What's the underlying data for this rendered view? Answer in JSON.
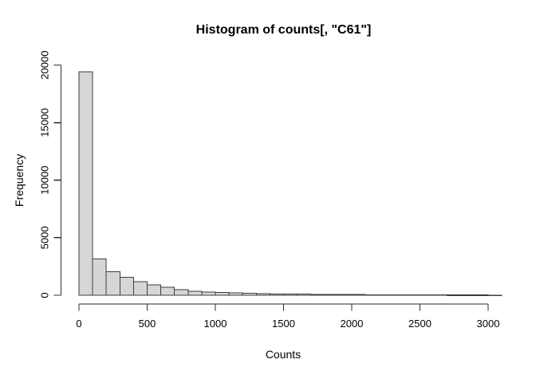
{
  "figure": {
    "kind": "R base-graphics histogram plot",
    "background": "#ffffff"
  },
  "chart_data": {
    "type": "bar",
    "subtype": "histogram",
    "title": "Histogram of counts[, \"C61\"]",
    "xlabel": "Counts",
    "ylabel": "Frequency",
    "bin_start": 0,
    "bin_width": 100,
    "bin_edges": [
      0,
      100,
      200,
      300,
      400,
      500,
      600,
      700,
      800,
      900,
      1000,
      1100,
      1200,
      1300,
      1400,
      1500,
      1600,
      1700,
      1800,
      1900,
      2000,
      2100,
      2200,
      2300,
      2400,
      2500,
      2600,
      2700,
      2800,
      2900,
      3000,
      3100
    ],
    "values": [
      19400,
      3150,
      2060,
      1550,
      1180,
      890,
      700,
      500,
      360,
      290,
      235,
      195,
      165,
      140,
      120,
      105,
      92,
      80,
      70,
      62,
      55,
      48,
      42,
      37,
      33,
      29,
      26,
      23,
      20,
      18,
      16
    ],
    "x_ticks": [
      0,
      500,
      1000,
      1500,
      2000,
      2500,
      3000
    ],
    "y_ticks": [
      0,
      5000,
      10000,
      15000,
      20000
    ],
    "xlim": [
      0,
      3100
    ],
    "ylim": [
      0,
      20000
    ],
    "grid": false,
    "legend": "none",
    "colors": {
      "bar_fill": "#d6d6d6",
      "bar_border": "#3d3d3d",
      "axis": "#2e2e2e",
      "text": "#000000",
      "background": "#ffffff"
    }
  }
}
